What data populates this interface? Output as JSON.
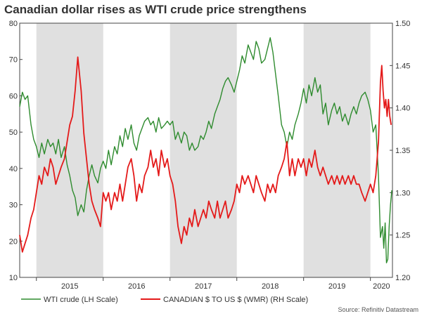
{
  "title": "Canadian dollar rises as WTI crude price strengthens",
  "source": "Source: Refinitiv Datastream",
  "chart_data": {
    "type": "line",
    "title": "Canadian dollar rises as WTI crude price strengthens",
    "left_axis": {
      "min": 10,
      "max": 80,
      "ticks": [
        10,
        20,
        30,
        40,
        50,
        60,
        70,
        80
      ]
    },
    "right_axis": {
      "min": 1.2,
      "max": 1.5,
      "ticks": [
        "1.20",
        "1.25",
        "1.30",
        "1.35",
        "1.40",
        "1.45",
        "1.50"
      ]
    },
    "x_axis": {
      "min": 2014.75,
      "max": 2020.33,
      "labels": [
        "2015",
        "2016",
        "2017",
        "2018",
        "2019",
        "2020"
      ]
    },
    "shaded_years": [
      2015,
      2017,
      2019
    ],
    "grid": false,
    "legend_position": "bottom-left",
    "series": [
      {
        "name": "WTI crude (LH Scale)",
        "axis": "left",
        "color": "#2e8b2e",
        "points": [
          [
            2014.75,
            57
          ],
          [
            2014.79,
            61
          ],
          [
            2014.83,
            59
          ],
          [
            2014.87,
            60
          ],
          [
            2014.92,
            52
          ],
          [
            2014.96,
            48
          ],
          [
            2015.0,
            46
          ],
          [
            2015.04,
            43
          ],
          [
            2015.08,
            47
          ],
          [
            2015.12,
            44
          ],
          [
            2015.17,
            48
          ],
          [
            2015.21,
            46
          ],
          [
            2015.25,
            47
          ],
          [
            2015.29,
            44
          ],
          [
            2015.33,
            48
          ],
          [
            2015.37,
            43
          ],
          [
            2015.42,
            46
          ],
          [
            2015.46,
            41
          ],
          [
            2015.5,
            38
          ],
          [
            2015.54,
            34
          ],
          [
            2015.58,
            32
          ],
          [
            2015.62,
            27
          ],
          [
            2015.67,
            30
          ],
          [
            2015.71,
            28
          ],
          [
            2015.75,
            34
          ],
          [
            2015.79,
            38
          ],
          [
            2015.83,
            41
          ],
          [
            2015.87,
            38
          ],
          [
            2015.92,
            36
          ],
          [
            2015.96,
            40
          ],
          [
            2016.0,
            42
          ],
          [
            2016.04,
            40
          ],
          [
            2016.08,
            45
          ],
          [
            2016.12,
            41
          ],
          [
            2016.17,
            46
          ],
          [
            2016.21,
            44
          ],
          [
            2016.25,
            49
          ],
          [
            2016.29,
            46
          ],
          [
            2016.33,
            51
          ],
          [
            2016.37,
            48
          ],
          [
            2016.42,
            52
          ],
          [
            2016.46,
            47
          ],
          [
            2016.5,
            45
          ],
          [
            2016.54,
            49
          ],
          [
            2016.58,
            51
          ],
          [
            2016.62,
            53
          ],
          [
            2016.67,
            54
          ],
          [
            2016.71,
            52
          ],
          [
            2016.75,
            53
          ],
          [
            2016.79,
            50
          ],
          [
            2016.83,
            54
          ],
          [
            2016.87,
            51
          ],
          [
            2016.92,
            52
          ],
          [
            2016.96,
            53
          ],
          [
            2017.0,
            52
          ],
          [
            2017.04,
            53
          ],
          [
            2017.08,
            48
          ],
          [
            2017.12,
            50
          ],
          [
            2017.17,
            47
          ],
          [
            2017.21,
            50
          ],
          [
            2017.25,
            49
          ],
          [
            2017.29,
            45
          ],
          [
            2017.33,
            47
          ],
          [
            2017.37,
            45
          ],
          [
            2017.42,
            46
          ],
          [
            2017.46,
            49
          ],
          [
            2017.5,
            48
          ],
          [
            2017.54,
            50
          ],
          [
            2017.58,
            53
          ],
          [
            2017.62,
            51
          ],
          [
            2017.67,
            55
          ],
          [
            2017.71,
            57
          ],
          [
            2017.75,
            59
          ],
          [
            2017.79,
            62
          ],
          [
            2017.83,
            64
          ],
          [
            2017.87,
            65
          ],
          [
            2017.92,
            63
          ],
          [
            2017.96,
            61
          ],
          [
            2018.0,
            64
          ],
          [
            2018.04,
            67
          ],
          [
            2018.08,
            71
          ],
          [
            2018.12,
            69
          ],
          [
            2018.17,
            74
          ],
          [
            2018.21,
            72
          ],
          [
            2018.25,
            70
          ],
          [
            2018.29,
            75
          ],
          [
            2018.33,
            73
          ],
          [
            2018.37,
            69
          ],
          [
            2018.42,
            70
          ],
          [
            2018.46,
            73
          ],
          [
            2018.5,
            76
          ],
          [
            2018.54,
            72
          ],
          [
            2018.58,
            66
          ],
          [
            2018.62,
            60
          ],
          [
            2018.67,
            52
          ],
          [
            2018.71,
            50
          ],
          [
            2018.75,
            46
          ],
          [
            2018.79,
            50
          ],
          [
            2018.83,
            48
          ],
          [
            2018.87,
            52
          ],
          [
            2018.92,
            55
          ],
          [
            2018.96,
            58
          ],
          [
            2019.0,
            62
          ],
          [
            2019.04,
            58
          ],
          [
            2019.08,
            63
          ],
          [
            2019.12,
            60
          ],
          [
            2019.17,
            65
          ],
          [
            2019.21,
            61
          ],
          [
            2019.25,
            63
          ],
          [
            2019.29,
            55
          ],
          [
            2019.33,
            58
          ],
          [
            2019.37,
            52
          ],
          [
            2019.42,
            56
          ],
          [
            2019.46,
            58
          ],
          [
            2019.5,
            55
          ],
          [
            2019.54,
            57
          ],
          [
            2019.58,
            53
          ],
          [
            2019.62,
            55
          ],
          [
            2019.67,
            52
          ],
          [
            2019.71,
            55
          ],
          [
            2019.75,
            57
          ],
          [
            2019.79,
            55
          ],
          [
            2019.83,
            58
          ],
          [
            2019.87,
            60
          ],
          [
            2019.92,
            61
          ],
          [
            2019.96,
            59
          ],
          [
            2020.0,
            56
          ],
          [
            2020.04,
            50
          ],
          [
            2020.08,
            52
          ],
          [
            2020.12,
            38
          ],
          [
            2020.15,
            21
          ],
          [
            2020.18,
            24
          ],
          [
            2020.2,
            18
          ],
          [
            2020.22,
            25
          ],
          [
            2020.24,
            14
          ],
          [
            2020.26,
            15
          ],
          [
            2020.28,
            24
          ],
          [
            2020.3,
            30
          ],
          [
            2020.32,
            34
          ]
        ]
      },
      {
        "name": "CANADIAN $ TO US $ (WMR) (RH Scale)",
        "axis": "right",
        "color": "#e41a1a",
        "points": [
          [
            2014.75,
            1.25
          ],
          [
            2014.79,
            1.23
          ],
          [
            2014.83,
            1.24
          ],
          [
            2014.87,
            1.25
          ],
          [
            2014.92,
            1.27
          ],
          [
            2014.96,
            1.28
          ],
          [
            2015.0,
            1.3
          ],
          [
            2015.04,
            1.32
          ],
          [
            2015.08,
            1.31
          ],
          [
            2015.12,
            1.33
          ],
          [
            2015.17,
            1.32
          ],
          [
            2015.21,
            1.34
          ],
          [
            2015.25,
            1.33
          ],
          [
            2015.29,
            1.31
          ],
          [
            2015.33,
            1.32
          ],
          [
            2015.37,
            1.33
          ],
          [
            2015.42,
            1.34
          ],
          [
            2015.46,
            1.36
          ],
          [
            2015.5,
            1.38
          ],
          [
            2015.54,
            1.39
          ],
          [
            2015.58,
            1.42
          ],
          [
            2015.62,
            1.46
          ],
          [
            2015.67,
            1.42
          ],
          [
            2015.71,
            1.37
          ],
          [
            2015.75,
            1.34
          ],
          [
            2015.79,
            1.31
          ],
          [
            2015.83,
            1.29
          ],
          [
            2015.87,
            1.28
          ],
          [
            2015.92,
            1.27
          ],
          [
            2015.96,
            1.26
          ],
          [
            2016.0,
            1.3
          ],
          [
            2016.04,
            1.29
          ],
          [
            2016.08,
            1.3
          ],
          [
            2016.12,
            1.28
          ],
          [
            2016.17,
            1.3
          ],
          [
            2016.21,
            1.29
          ],
          [
            2016.25,
            1.31
          ],
          [
            2016.29,
            1.29
          ],
          [
            2016.33,
            1.31
          ],
          [
            2016.37,
            1.33
          ],
          [
            2016.42,
            1.34
          ],
          [
            2016.46,
            1.32
          ],
          [
            2016.5,
            1.29
          ],
          [
            2016.54,
            1.31
          ],
          [
            2016.58,
            1.3
          ],
          [
            2016.62,
            1.32
          ],
          [
            2016.67,
            1.33
          ],
          [
            2016.71,
            1.35
          ],
          [
            2016.75,
            1.33
          ],
          [
            2016.79,
            1.34
          ],
          [
            2016.83,
            1.32
          ],
          [
            2016.87,
            1.35
          ],
          [
            2016.92,
            1.33
          ],
          [
            2016.96,
            1.34
          ],
          [
            2017.0,
            1.32
          ],
          [
            2017.04,
            1.31
          ],
          [
            2017.08,
            1.29
          ],
          [
            2017.12,
            1.26
          ],
          [
            2017.17,
            1.24
          ],
          [
            2017.21,
            1.26
          ],
          [
            2017.25,
            1.25
          ],
          [
            2017.29,
            1.27
          ],
          [
            2017.33,
            1.26
          ],
          [
            2017.37,
            1.28
          ],
          [
            2017.42,
            1.26
          ],
          [
            2017.46,
            1.27
          ],
          [
            2017.5,
            1.28
          ],
          [
            2017.54,
            1.27
          ],
          [
            2017.58,
            1.29
          ],
          [
            2017.62,
            1.28
          ],
          [
            2017.67,
            1.27
          ],
          [
            2017.71,
            1.29
          ],
          [
            2017.75,
            1.27
          ],
          [
            2017.79,
            1.28
          ],
          [
            2017.83,
            1.29
          ],
          [
            2017.87,
            1.27
          ],
          [
            2017.92,
            1.28
          ],
          [
            2017.96,
            1.29
          ],
          [
            2018.0,
            1.31
          ],
          [
            2018.04,
            1.3
          ],
          [
            2018.08,
            1.32
          ],
          [
            2018.12,
            1.31
          ],
          [
            2018.17,
            1.32
          ],
          [
            2018.21,
            1.31
          ],
          [
            2018.25,
            1.3
          ],
          [
            2018.29,
            1.32
          ],
          [
            2018.33,
            1.31
          ],
          [
            2018.37,
            1.3
          ],
          [
            2018.42,
            1.29
          ],
          [
            2018.46,
            1.31
          ],
          [
            2018.5,
            1.3
          ],
          [
            2018.54,
            1.31
          ],
          [
            2018.58,
            1.3
          ],
          [
            2018.62,
            1.32
          ],
          [
            2018.67,
            1.33
          ],
          [
            2018.71,
            1.34
          ],
          [
            2018.75,
            1.36
          ],
          [
            2018.79,
            1.32
          ],
          [
            2018.83,
            1.34
          ],
          [
            2018.87,
            1.32
          ],
          [
            2018.92,
            1.34
          ],
          [
            2018.96,
            1.33
          ],
          [
            2019.0,
            1.34
          ],
          [
            2019.04,
            1.32
          ],
          [
            2019.08,
            1.34
          ],
          [
            2019.12,
            1.33
          ],
          [
            2019.17,
            1.35
          ],
          [
            2019.21,
            1.33
          ],
          [
            2019.25,
            1.32
          ],
          [
            2019.29,
            1.33
          ],
          [
            2019.33,
            1.32
          ],
          [
            2019.37,
            1.31
          ],
          [
            2019.42,
            1.32
          ],
          [
            2019.46,
            1.31
          ],
          [
            2019.5,
            1.32
          ],
          [
            2019.54,
            1.31
          ],
          [
            2019.58,
            1.32
          ],
          [
            2019.62,
            1.31
          ],
          [
            2019.67,
            1.32
          ],
          [
            2019.71,
            1.31
          ],
          [
            2019.75,
            1.32
          ],
          [
            2019.79,
            1.31
          ],
          [
            2019.83,
            1.31
          ],
          [
            2019.87,
            1.3
          ],
          [
            2019.92,
            1.29
          ],
          [
            2019.96,
            1.3
          ],
          [
            2020.0,
            1.31
          ],
          [
            2020.04,
            1.3
          ],
          [
            2020.08,
            1.32
          ],
          [
            2020.12,
            1.36
          ],
          [
            2020.15,
            1.43
          ],
          [
            2020.17,
            1.45
          ],
          [
            2020.19,
            1.42
          ],
          [
            2020.21,
            1.4
          ],
          [
            2020.23,
            1.41
          ],
          [
            2020.25,
            1.39
          ],
          [
            2020.27,
            1.41
          ],
          [
            2020.29,
            1.39
          ],
          [
            2020.31,
            1.38
          ]
        ]
      }
    ]
  }
}
